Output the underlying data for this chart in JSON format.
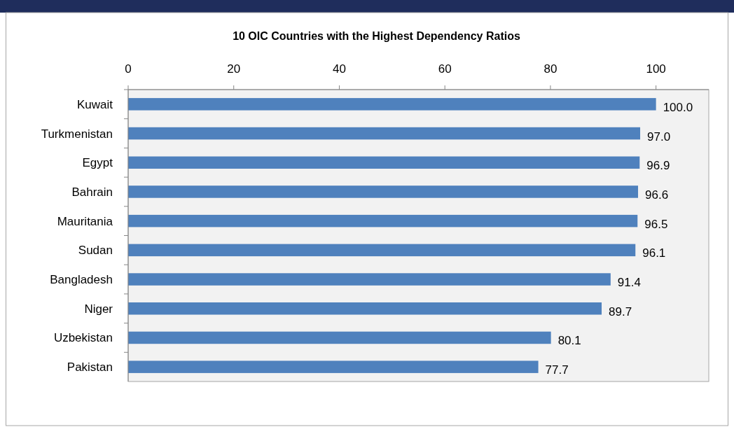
{
  "chart_data": {
    "type": "bar",
    "orientation": "horizontal",
    "title": "10 OIC Countries with the Highest Dependency Ratios",
    "categories": [
      "Kuwait",
      "Turkmenistan",
      "Egypt",
      "Bahrain",
      "Mauritania",
      "Sudan",
      "Bangladesh",
      "Niger",
      "Uzbekistan",
      "Pakistan"
    ],
    "values": [
      100.0,
      97.0,
      96.9,
      96.6,
      96.5,
      96.1,
      91.4,
      89.7,
      80.1,
      77.7
    ],
    "value_labels": [
      "100.0",
      "97.0",
      "96.9",
      "96.6",
      "96.5",
      "96.1",
      "91.4",
      "89.7",
      "80.1",
      "77.7"
    ],
    "color": "#4f81bd",
    "xlim": [
      0,
      110
    ],
    "xticks": [
      0,
      20,
      40,
      60,
      80,
      100
    ],
    "grid": false
  }
}
